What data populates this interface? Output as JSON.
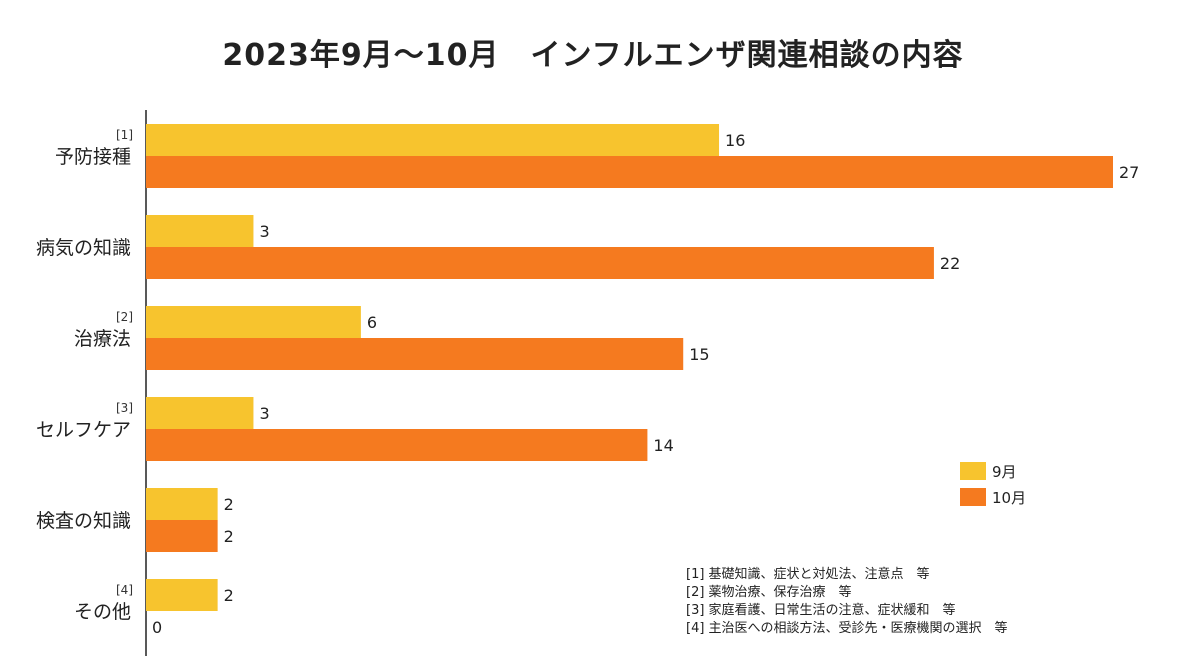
{
  "chart_data": {
    "type": "bar",
    "orientation": "horizontal",
    "title": "2023年9月～10月　インフルエンザ関連相談の内容",
    "categories": [
      "予防接種",
      "病気の知識",
      "治療法",
      "セルフケア",
      "検査の知識",
      "その他"
    ],
    "category_refs": [
      "[1]",
      "",
      "[2]",
      "[3]",
      "",
      "[4]"
    ],
    "series": [
      {
        "name": "9月",
        "color": "#F7C42E",
        "values": [
          16,
          3,
          6,
          3,
          2,
          2
        ]
      },
      {
        "name": "10月",
        "color": "#F57A1F",
        "values": [
          27,
          22,
          15,
          14,
          2,
          0
        ]
      }
    ],
    "xlim": [
      0,
      27
    ],
    "grid": false,
    "legend": "right",
    "notes": [
      "[1] 基礎知識、症状と対処法、注意点　等",
      "[2] 薬物治療、保存治療　等",
      "[3] 家庭看護、日常生活の注意、症状緩和　等",
      "[4] 主治医への相談方法、受診先・医療機関の選択　等"
    ]
  }
}
